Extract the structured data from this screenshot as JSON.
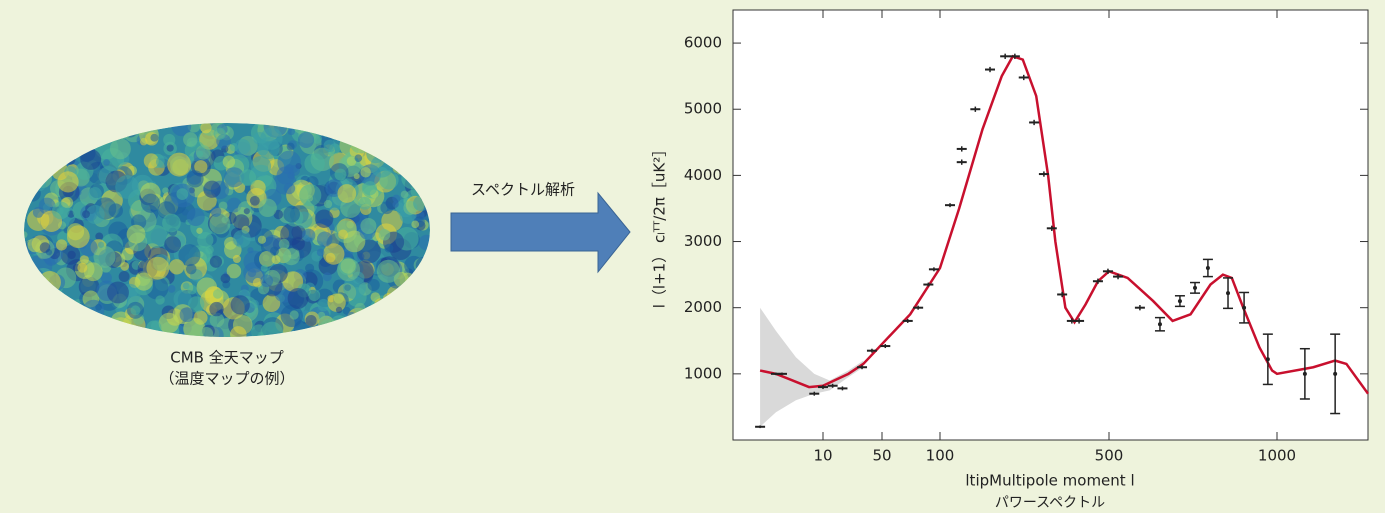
{
  "caption": {
    "map_title": "CMB 全天マップ",
    "map_subtitle": "（温度マップの例）",
    "arrow_label": "スペクトル解析"
  },
  "chart_data": {
    "type": "scatter",
    "ylabel": "l（l+1） cₗᵀᵀ/2π［uK²］",
    "xlabel": "ltipMultipole moment l",
    "subtitle": "パワースペクトル",
    "xlim": [
      1,
      1270
    ],
    "xticks": [
      10,
      50,
      100,
      500,
      1000
    ],
    "ylim": [
      0,
      6500
    ],
    "yticks": [
      1000,
      2000,
      3000,
      4000,
      5000,
      6000
    ],
    "band": {
      "color": "#d9d9d9",
      "x": [
        2,
        3,
        5,
        8,
        12,
        20,
        30
      ],
      "upper": [
        2000,
        1650,
        1250,
        1000,
        900,
        1050,
        1200
      ],
      "lower": [
        200,
        420,
        600,
        700,
        750,
        950,
        1100
      ]
    },
    "series": [
      {
        "type": "line",
        "color": "#c8102e",
        "x": [
          2,
          3,
          5,
          7,
          10,
          20,
          30,
          50,
          70,
          100,
          120,
          150,
          180,
          200,
          220,
          250,
          280,
          300,
          330,
          360,
          400,
          450,
          500,
          540,
          600,
          650,
          700,
          760,
          800,
          830,
          870,
          930,
          980,
          1000,
          1100,
          1165,
          1200,
          1270
        ],
        "values": [
          1050,
          1000,
          880,
          800,
          820,
          1000,
          1150,
          1450,
          1900,
          2600,
          3500,
          4700,
          5500,
          5800,
          5750,
          5200,
          4000,
          3000,
          2000,
          1780,
          2050,
          2400,
          2550,
          2450,
          2100,
          1800,
          1900,
          2350,
          2500,
          2450,
          2000,
          1400,
          1050,
          1000,
          1100,
          1200,
          1150,
          700
        ]
      },
      {
        "type": "errorbar",
        "color": "#222",
        "x": [
          2,
          3,
          3.5,
          8,
          10,
          13,
          17,
          29,
          38,
          52,
          68,
          77,
          87,
          93,
          110,
          123,
          123,
          140,
          161,
          186,
          204,
          222,
          245,
          269,
          290,
          320,
          351,
          376,
          450,
          495,
          519,
          568,
          617,
          670,
          713,
          752,
          817,
          873,
          963,
          1076,
          1165
        ],
        "values": [
          200,
          1000,
          1000,
          700,
          800,
          820,
          780,
          1100,
          1350,
          1420,
          1800,
          2000,
          2350,
          2580,
          3550,
          4200,
          4400,
          5000,
          5600,
          5800,
          5800,
          5480,
          4800,
          4020,
          3200,
          2200,
          1800,
          1800,
          2400,
          2550,
          2470,
          2000,
          1750,
          2100,
          2300,
          2600,
          2220,
          2000,
          1220,
          1000,
          1000
        ],
        "errors": [
          20,
          20,
          20,
          30,
          30,
          30,
          30,
          30,
          30,
          30,
          30,
          30,
          30,
          30,
          30,
          40,
          40,
          40,
          40,
          40,
          40,
          40,
          40,
          40,
          40,
          40,
          40,
          40,
          40,
          40,
          40,
          40,
          100,
          80,
          80,
          130,
          230,
          230,
          380,
          380,
          600
        ]
      }
    ]
  }
}
